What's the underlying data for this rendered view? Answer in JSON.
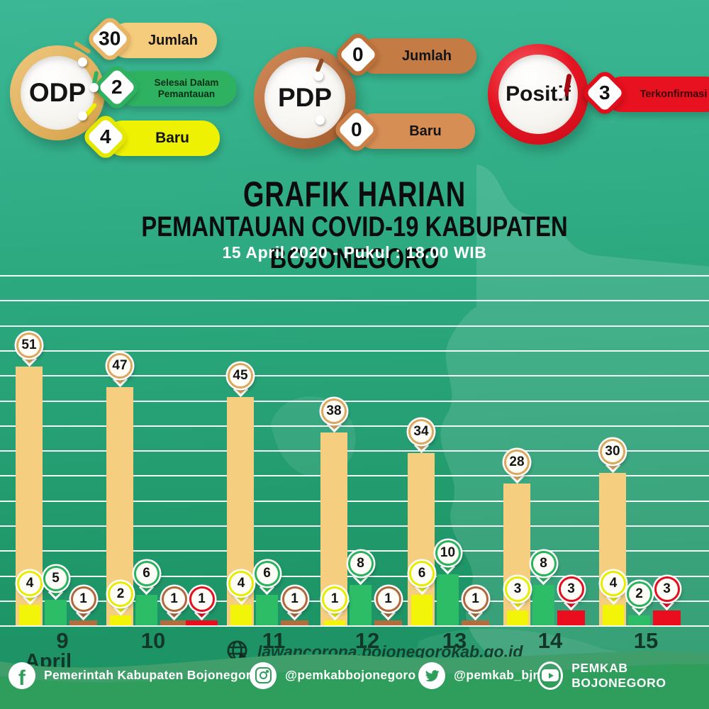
{
  "header": {
    "clusters": [
      {
        "id": "odp",
        "label": "ODP",
        "badges": [
          {
            "value": "30",
            "label": "Jumlah"
          },
          {
            "value": "2",
            "label": "Selesai Dalam Pemantauan"
          },
          {
            "value": "4",
            "label": "Baru"
          }
        ]
      },
      {
        "id": "pdp",
        "label": "PDP",
        "badges": [
          {
            "value": "0",
            "label": "Jumlah"
          },
          {
            "value": "0",
            "label": "Baru"
          }
        ]
      },
      {
        "id": "positif",
        "label": "Positif",
        "badges": [
          {
            "value": "3",
            "label": "Terkonfirmasi"
          }
        ]
      }
    ]
  },
  "title": {
    "line1": "GRAFIK HARIAN",
    "line2": "PEMANTAUAN COVID-19 KABUPATEN BOJONEGORO",
    "datetime": "15 April 2020 - Pukul : 18.00 WIB"
  },
  "chart_data": {
    "type": "bar",
    "categories": [
      "9",
      "10",
      "11",
      "12",
      "13",
      "14",
      "15"
    ],
    "x_axis_month": "April",
    "ylabel": "",
    "grid": true,
    "series": [
      {
        "name": "ODP Jumlah",
        "color": "#f6ce80",
        "ring": "#dca85e",
        "values": [
          51,
          47,
          45,
          38,
          34,
          28,
          30
        ]
      },
      {
        "name": "ODP Baru",
        "color": "#f2f508",
        "ring": "#e9ec00",
        "values": [
          4,
          2,
          4,
          1,
          6,
          3,
          4
        ]
      },
      {
        "name": "Selesai Dalam Pemantauan",
        "color": "#2dbd66",
        "ring": "#28b35c",
        "values": [
          5,
          6,
          6,
          8,
          10,
          8,
          2
        ]
      },
      {
        "name": "PDP",
        "color": "#b26d3e",
        "ring": "#af693c",
        "values": [
          1,
          1,
          1,
          1,
          1,
          null,
          null
        ]
      },
      {
        "name": "Positif",
        "color": "#ea0d1e",
        "ring": "#e40f1e",
        "values": [
          null,
          1,
          null,
          null,
          null,
          3,
          3
        ]
      }
    ]
  },
  "website": {
    "url": "lawancorona.bojonegorokab.go.id"
  },
  "footer": {
    "socials": [
      {
        "platform": "facebook",
        "handle": "Pemerintah Kabupaten Bojonegoro"
      },
      {
        "platform": "instagram",
        "handle": "@pemkabbojonegoro"
      },
      {
        "platform": "twitter",
        "handle": "@pemkab_bjn"
      },
      {
        "platform": "youtube",
        "handle": "PEMKAB BOJONEGORO"
      }
    ]
  },
  "colors": {
    "background_top": "#3cb795",
    "background_bottom": "#1c9163",
    "footer_band": "#2f9e5c",
    "footer_back_wave": "#3f9e6a",
    "odp_accent": "#e9b564",
    "odp_green": "#2eb160",
    "odp_yellow": "#eef000",
    "pdp_dark": "#c57b44",
    "pdp_light": "#d78e55",
    "positif_red": "#e8111f"
  }
}
